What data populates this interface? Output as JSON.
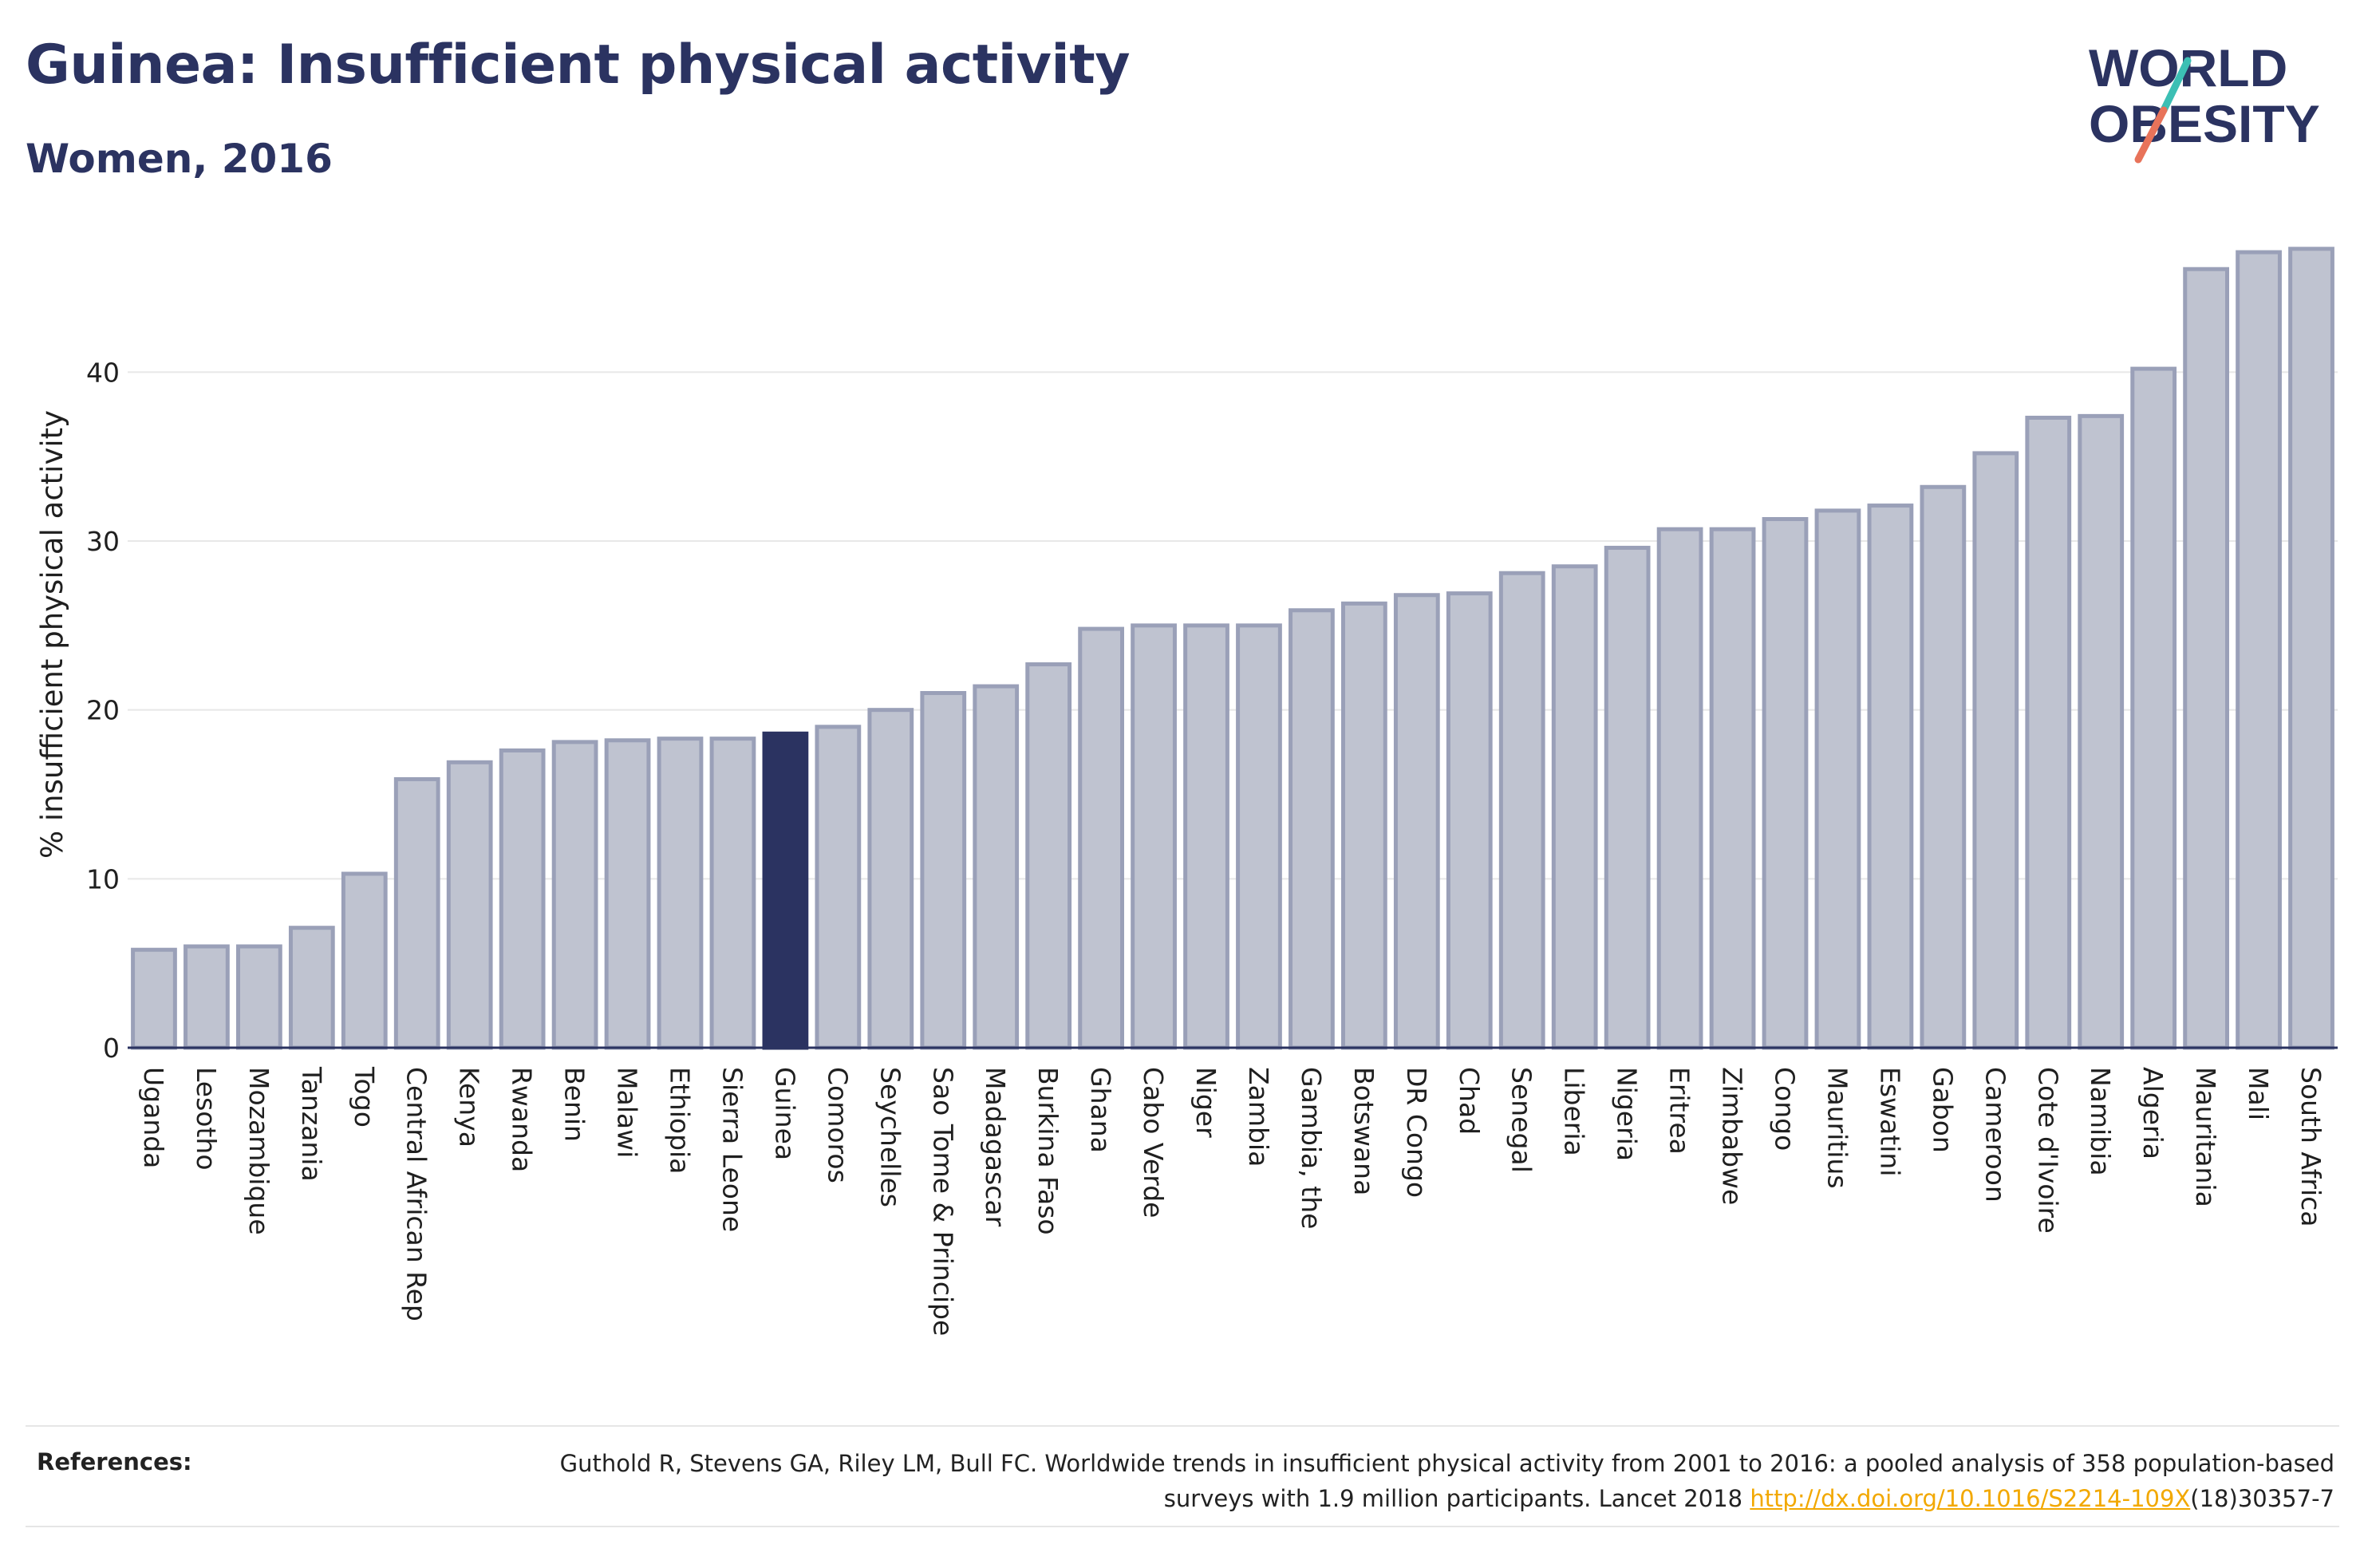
{
  "header": {
    "title": "Guinea: Insufficient physical activity",
    "subtitle": "Women, 2016"
  },
  "logo": {
    "line1": "WORLD",
    "line2": "OBESITY"
  },
  "colors": {
    "highlight": "#2b3361",
    "bar_fill": "#bfc3d0",
    "bar_stroke": "#9aa0b8",
    "logo_teal": "#3cbfb4",
    "logo_coral": "#e8735a",
    "link": "#f2a800"
  },
  "references": {
    "label": "References:",
    "text_before": "Guthold R, Stevens GA, Riley LM, Bull FC. Worldwide trends in insufficient physical activity from 2001 to 2016: a pooled analysis of 358 population-based surveys with 1.9 million participants. Lancet 2018 ",
    "link_text": "http://dx.doi.org/10.1016/S2214-109X",
    "text_after": "(18)30357-7"
  },
  "chart_data": {
    "type": "bar",
    "title": "Guinea: Insufficient physical activity",
    "subtitle": "Women, 2016",
    "xlabel": "",
    "ylabel": "% insufficient physical activity",
    "ylim": [
      0,
      48
    ],
    "yticks": [
      0,
      10,
      20,
      30,
      40
    ],
    "grid": true,
    "highlight": "Guinea",
    "categories": [
      "Uganda",
      "Lesotho",
      "Mozambique",
      "Tanzania",
      "Togo",
      "Central African Rep",
      "Kenya",
      "Rwanda",
      "Benin",
      "Malawi",
      "Ethiopia",
      "Sierra Leone",
      "Guinea",
      "Comoros",
      "Seychelles",
      "Sao Tome & Principe",
      "Madagascar",
      "Burkina Faso",
      "Ghana",
      "Cabo Verde",
      "Niger",
      "Zambia",
      "Gambia, the",
      "Botswana",
      "DR Congo",
      "Chad",
      "Senegal",
      "Liberia",
      "Nigeria",
      "Eritrea",
      "Zimbabwe",
      "Congo",
      "Mauritius",
      "Eswatini",
      "Gabon",
      "Cameroon",
      "Cote d'Ivoire",
      "Namibia",
      "Algeria",
      "Mauritania",
      "Mali",
      "South Africa"
    ],
    "values": [
      5.8,
      6.0,
      6.0,
      7.1,
      10.3,
      15.9,
      16.9,
      17.6,
      18.1,
      18.2,
      18.3,
      18.3,
      18.6,
      19.0,
      20.0,
      21.0,
      21.4,
      22.7,
      24.8,
      25.0,
      25.0,
      25.0,
      25.9,
      26.3,
      26.8,
      26.9,
      28.1,
      28.5,
      29.6,
      30.7,
      30.7,
      31.3,
      31.8,
      32.1,
      33.2,
      35.2,
      37.3,
      37.4,
      40.2,
      46.1,
      47.1,
      47.3
    ]
  }
}
